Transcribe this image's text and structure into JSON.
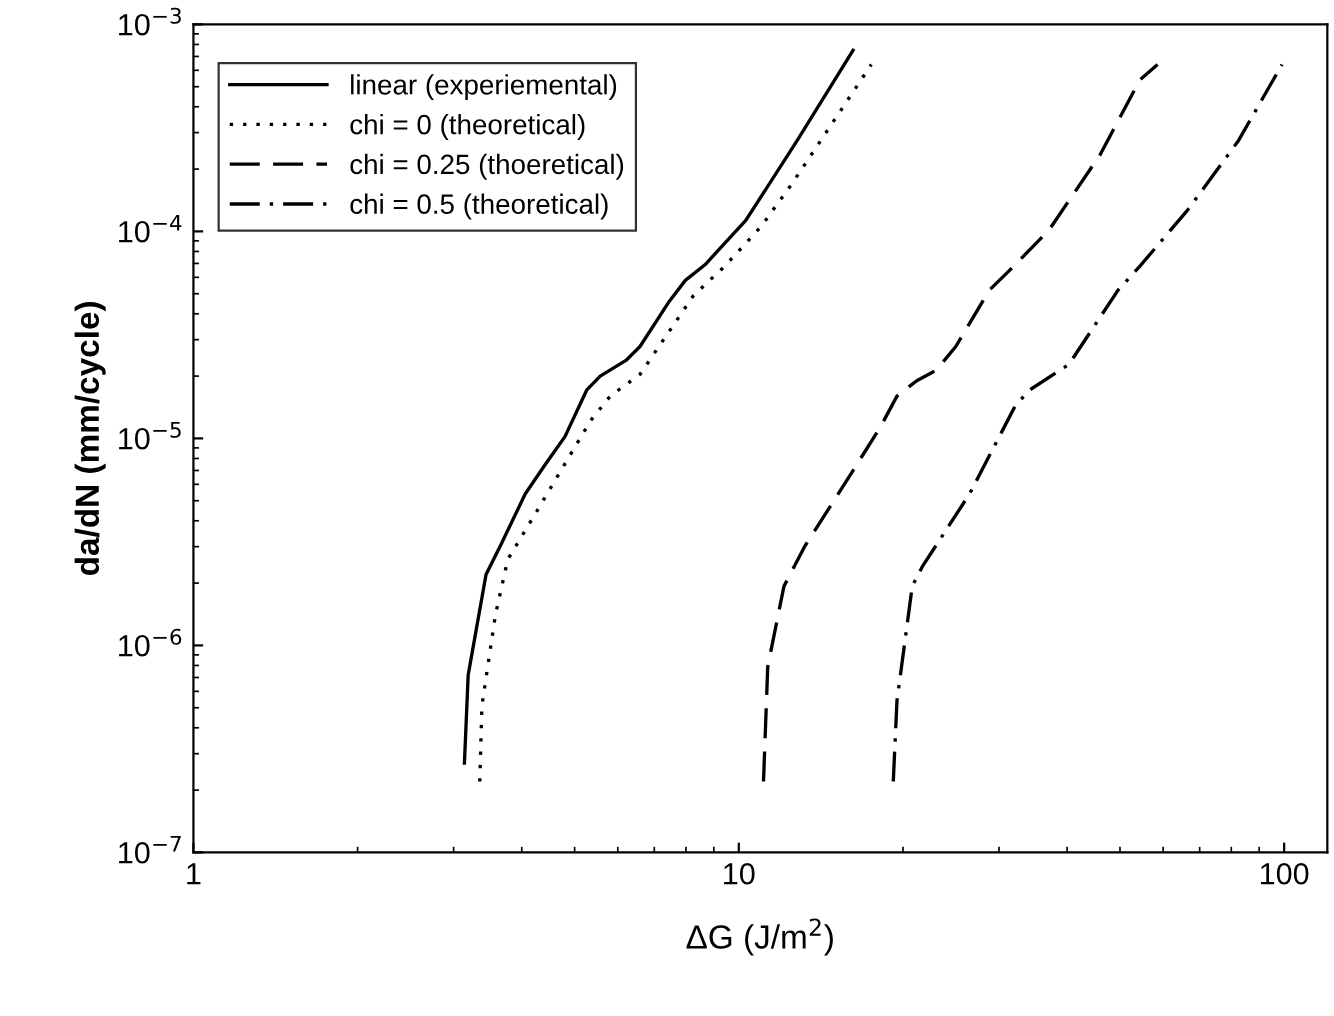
{
  "chart_data": {
    "type": "line",
    "xlabel": "ΔG (J/m$^{2}$)",
    "ylabel": "da/dN (mm/cycle)",
    "log": "xy",
    "xlim": [
      1,
      120
    ],
    "xticks": [
      1,
      10,
      100
    ],
    "ylim": [
      1e-07,
      0.001
    ],
    "yticks": [
      {
        "value": 1e-07,
        "label": "10$^{−7}$"
      },
      {
        "value": 1e-06,
        "label": "10$^{−6}$"
      },
      {
        "value": 1e-05,
        "label": "10$^{−5}$"
      },
      {
        "value": 0.0001,
        "label": "10$^{−4}$"
      },
      {
        "value": 0.001,
        "label": "10$^{−3}$"
      }
    ],
    "grid": false,
    "legend": "top left",
    "marker": "none",
    "series": [
      {
        "name": "linear (experiemental)",
        "color": "#000000",
        "line_style": "solid",
        "x": [
          3.14,
          3.19,
          3.44,
          3.67,
          4.06,
          4.42,
          4.8,
          5.26,
          5.57,
          6.21,
          6.59,
          7.46,
          7.98,
          8.67,
          10.3,
          12.8,
          16.2
        ],
        "values": [
          2.7e-07,
          7.2e-07,
          2.2e-06,
          3.1e-06,
          5.4e-06,
          7.5e-06,
          1.02e-05,
          1.71e-05,
          2e-05,
          2.38e-05,
          2.78e-05,
          4.6e-05,
          5.8e-05,
          6.9e-05,
          0.000113,
          0.000275,
          0.00075
        ]
      },
      {
        "name": "chi = 0 (theoretical)",
        "color": "#000000",
        "line_style": "dotted",
        "x": [
          3.35,
          3.38,
          3.58,
          3.77,
          4.23,
          4.72,
          5.35,
          5.81,
          6.59,
          7.46,
          8.26,
          9.43,
          11.0,
          12.5,
          17.5
        ],
        "values": [
          2.2e-07,
          5.1e-07,
          1.41e-06,
          2.6e-06,
          4.3e-06,
          7e-06,
          1.22e-05,
          1.6e-05,
          2.04e-05,
          3.3e-05,
          4.9e-05,
          6.8e-05,
          0.000106,
          0.000169,
          0.00064
        ]
      },
      {
        "name": "chi = 0.25 (thoeretical)",
        "color": "#000000",
        "line_style": "dashed",
        "x": [
          11.1,
          11.3,
          12.1,
          13.2,
          15.8,
          18.2,
          19.5,
          21.2,
          23.0,
          25.0,
          28.8,
          31.4,
          37.0,
          46.0,
          54.4,
          58.6
        ],
        "values": [
          2.2e-07,
          7.9e-07,
          1.93e-06,
          3e-06,
          6.3e-06,
          1.14e-05,
          1.6e-05,
          1.9e-05,
          2.13e-05,
          2.78e-05,
          5.2e-05,
          6.5e-05,
          0.000101,
          0.000235,
          0.00054,
          0.00064
        ]
      },
      {
        "name": "chi = 0.5 (theoretical)",
        "color": "#000000",
        "line_style": "dashdot",
        "x": [
          19.2,
          19.5,
          20.8,
          21.7,
          26.5,
          32.1,
          34.1,
          40.3,
          49.6,
          54.4,
          66.4,
          82.5,
          99.1
        ],
        "values": [
          2.2e-07,
          5.4e-07,
          1.93e-06,
          2.4e-06,
          5.4e-06,
          1.43e-05,
          1.71e-05,
          2.28e-05,
          5.2e-05,
          6.8e-05,
          0.000126,
          0.000275,
          0.00064
        ]
      }
    ]
  }
}
